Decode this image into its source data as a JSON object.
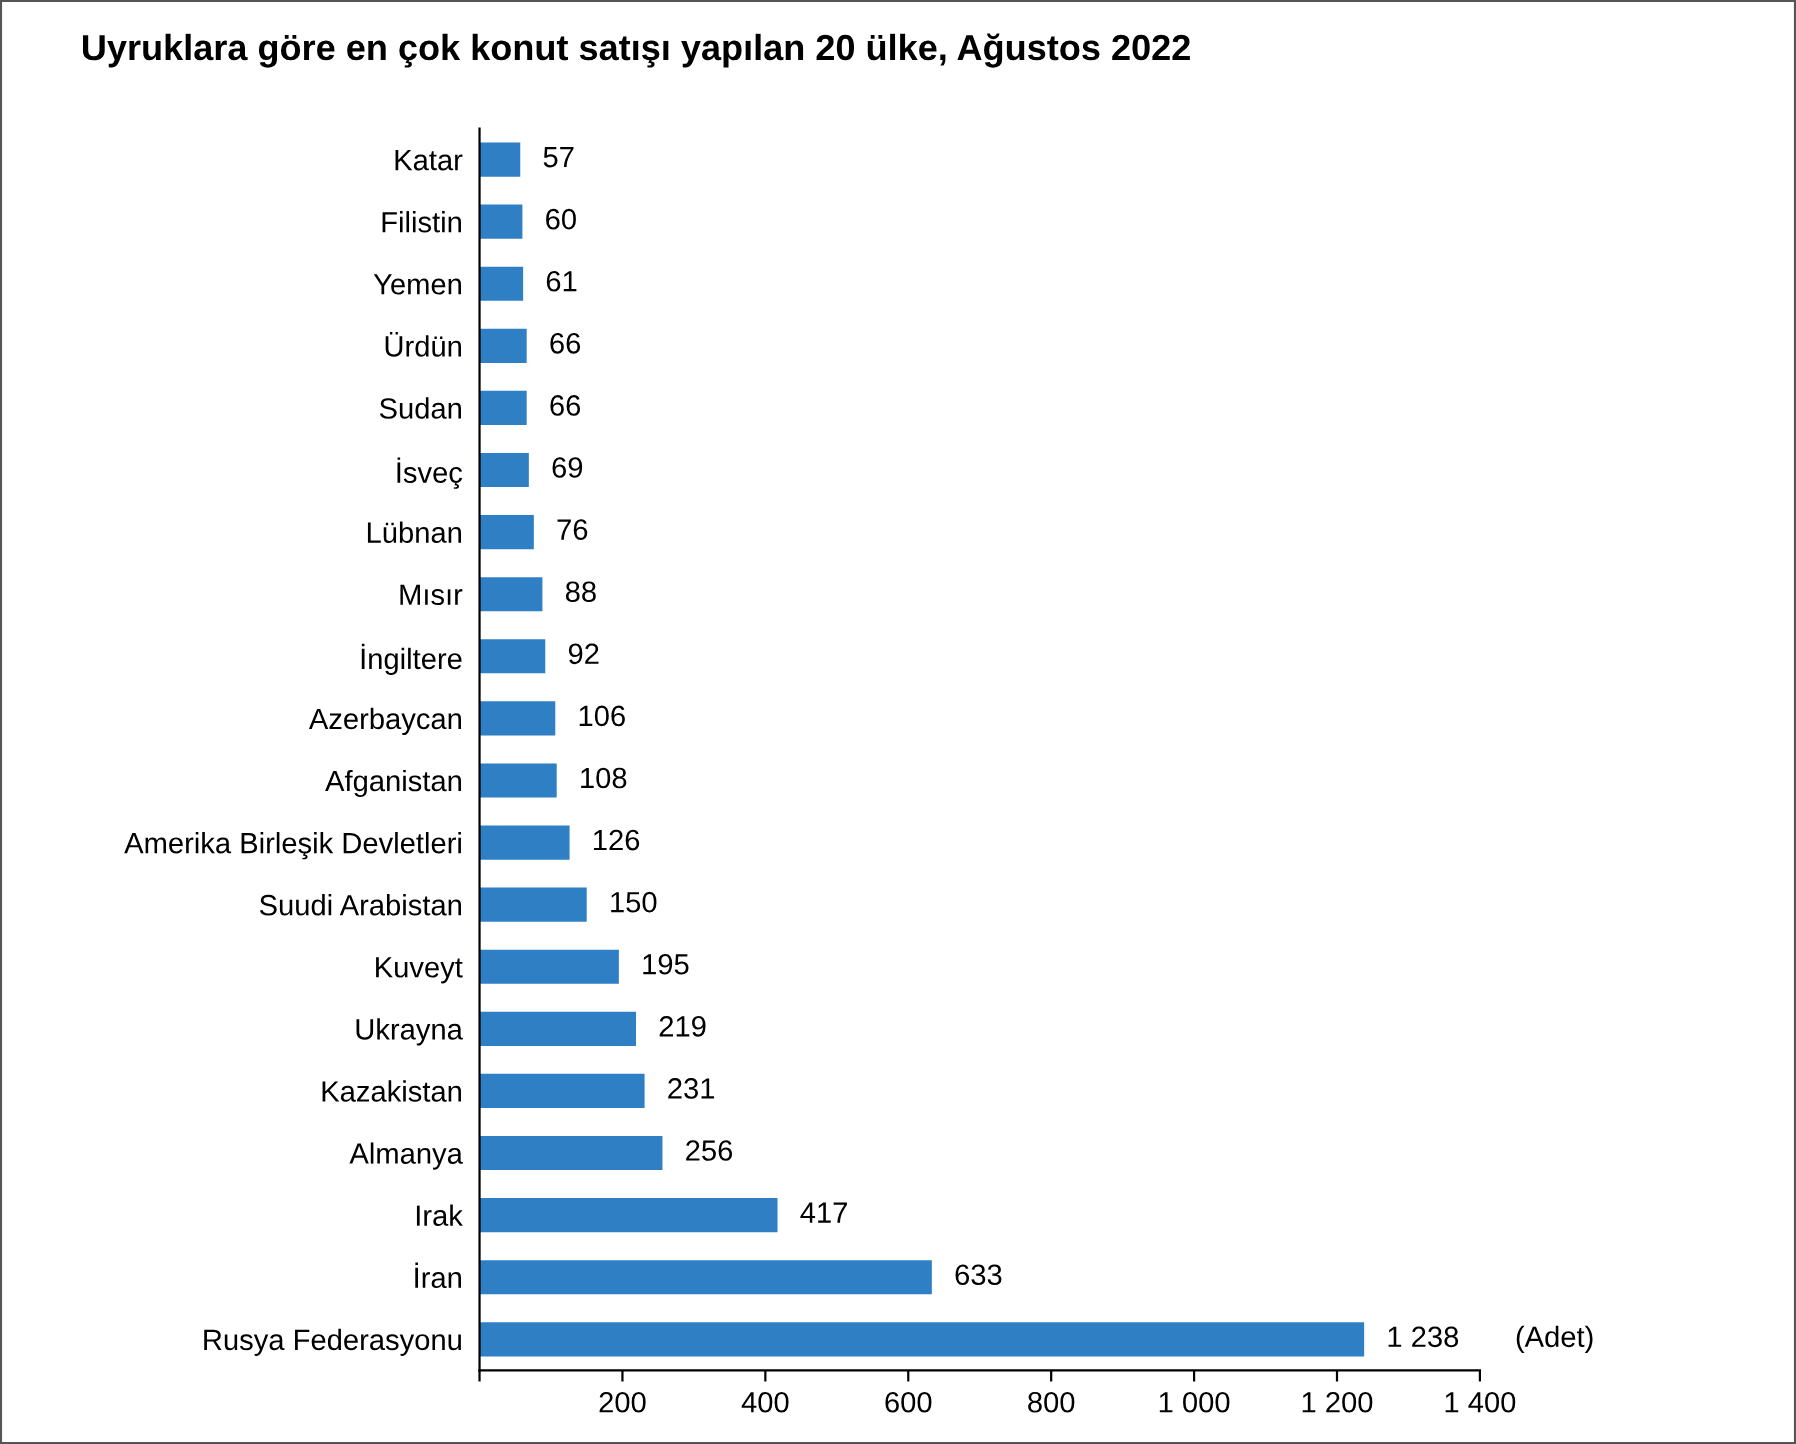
{
  "chart_data": {
    "type": "bar",
    "orientation": "horizontal",
    "title": "Uyruklara göre en çok konut satışı yapılan 20 ülke, Ağustos 2022",
    "categories": [
      "Katar",
      "Filistin",
      "Yemen",
      "Ürdün",
      "Sudan",
      "İsveç",
      "Lübnan",
      "Mısır",
      "İngiltere",
      "Azerbaycan",
      "Afganistan",
      "Amerika Birleşik Devletleri",
      "Suudi Arabistan",
      "Kuveyt",
      "Ukrayna",
      "Kazakistan",
      "Almanya",
      "Irak",
      "İran",
      "Rusya Federasyonu"
    ],
    "values": [
      57,
      60,
      61,
      66,
      66,
      69,
      76,
      88,
      92,
      106,
      108,
      126,
      150,
      195,
      219,
      231,
      256,
      417,
      633,
      1238
    ],
    "value_labels": [
      "57",
      "60",
      "61",
      "66",
      "66",
      "69",
      "76",
      "88",
      "92",
      "106",
      "108",
      "126",
      "150",
      "195",
      "219",
      "231",
      "256",
      "417",
      "633",
      "1 238"
    ],
    "color": "#2f7fc4",
    "xlim": [
      0,
      1400
    ],
    "xticks": [
      {
        "value": 0,
        "label": null
      },
      200,
      400,
      600,
      800,
      {
        "value": 1000,
        "label": "1 000"
      },
      {
        "value": 1200,
        "label": "1 200"
      },
      {
        "value": 1400,
        "label": "1 400"
      }
    ],
    "annotations": [
      "(Adet)"
    ],
    "grid": false,
    "legend": false
  }
}
